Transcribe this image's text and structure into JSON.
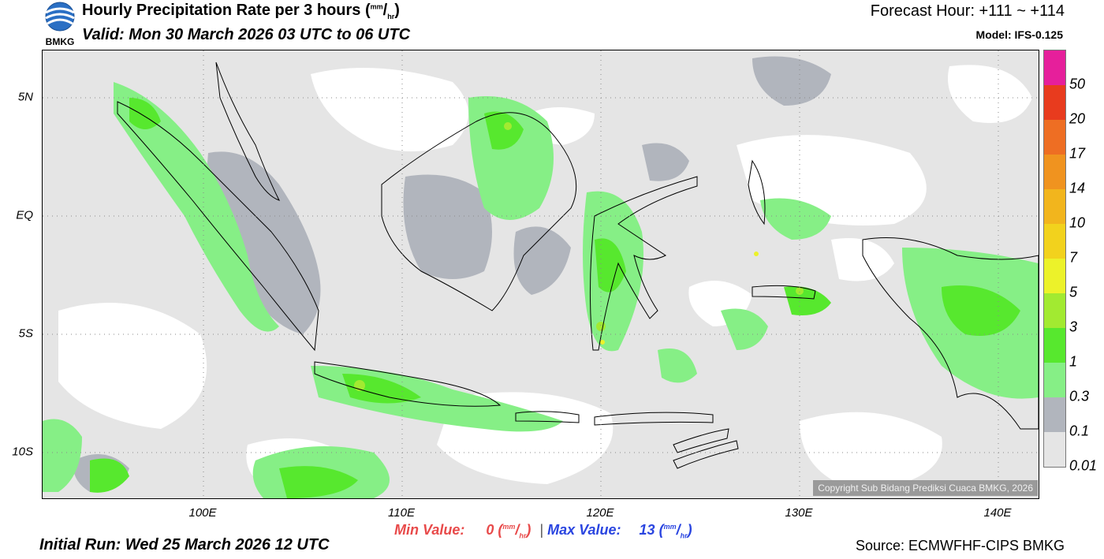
{
  "header": {
    "logo_text": "BMKG",
    "title_main": "Hourly Precipitation Rate per 3 hours (",
    "title_unit_num": "mm",
    "title_unit_sep": "/",
    "title_unit_den": "hr",
    "title_close": ")",
    "valid": "Valid: Mon 30 March 2026 03 UTC to 06 UTC",
    "forecast_hour": "Forecast Hour: +111 ~ +114",
    "model": "Model: IFS-0.125"
  },
  "map": {
    "lat_labels": [
      "5N",
      "EQ",
      "5S",
      "10S"
    ],
    "lon_labels": [
      "100E",
      "110E",
      "120E",
      "130E",
      "140E"
    ],
    "copyright": "Copyright Sub Bidang Prediksi Cuaca BMKG, 2026",
    "colors": {
      "land_dry": "#ffffff",
      "light_drizzle": "#e5e5e5",
      "drizzle": "#b1b5bd",
      "light": "#86ef86",
      "moderate": "#57e82e",
      "moderate_heavy": "#a2ea31"
    }
  },
  "legend": {
    "levels": [
      {
        "label": "0.01",
        "color": "#e5e5e5"
      },
      {
        "label": "0.1",
        "color": "#b1b5bd"
      },
      {
        "label": "0.3",
        "color": "#86ef86"
      },
      {
        "label": "1",
        "color": "#57e82e"
      },
      {
        "label": "3",
        "color": "#a2ea31"
      },
      {
        "label": "5",
        "color": "#ecf22a"
      },
      {
        "label": "7",
        "color": "#f2d21d"
      },
      {
        "label": "10",
        "color": "#f2b51d"
      },
      {
        "label": "14",
        "color": "#f0931f"
      },
      {
        "label": "17",
        "color": "#ee6e23"
      },
      {
        "label": "20",
        "color": "#e83b1e"
      },
      {
        "label": "50",
        "color": "#e61f9b"
      }
    ]
  },
  "footer": {
    "min_label": "Min Value:",
    "min_value": "0",
    "max_label": "Max Value:",
    "max_value": "13",
    "unit_num": "mm",
    "unit_sep": "/",
    "unit_den": "hr",
    "separator": "|",
    "initial_run": "Initial Run: Wed 25 March 2026 12 UTC",
    "source": "Source: ECMWFHF-CIPS BMKG"
  }
}
